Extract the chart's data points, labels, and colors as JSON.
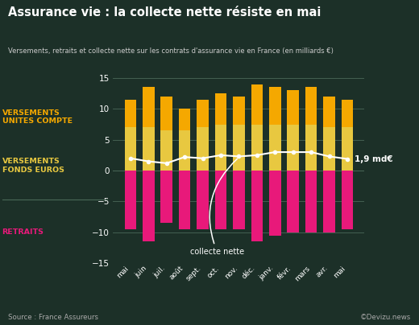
{
  "months": [
    "mai",
    "juin",
    "juil.",
    "août",
    "sept.",
    "oct.",
    "nov.",
    "déc.",
    "janv.",
    "févr.",
    "mars",
    "avr.",
    "mai"
  ],
  "versements_fonds_euros": [
    7.0,
    7.0,
    6.5,
    6.5,
    7.0,
    7.5,
    7.5,
    7.5,
    7.5,
    7.5,
    7.5,
    7.0,
    7.0
  ],
  "versements_uc": [
    4.5,
    6.5,
    5.5,
    3.5,
    4.5,
    5.0,
    4.5,
    6.5,
    6.0,
    5.5,
    6.0,
    5.0,
    4.5
  ],
  "retraits": [
    -9.5,
    -11.5,
    -8.5,
    -9.5,
    -9.5,
    -9.5,
    -9.5,
    -11.5,
    -10.5,
    -10.0,
    -10.0,
    -10.0,
    -9.5
  ],
  "collecte_nette": [
    2.0,
    1.5,
    1.2,
    2.2,
    2.0,
    2.5,
    2.3,
    2.5,
    3.0,
    3.0,
    3.0,
    2.3,
    1.9
  ],
  "color_uc": "#F5A800",
  "color_fonds_euros": "#E8C840",
  "color_retraits": "#E8197A",
  "color_line": "#FFFFFF",
  "bg_color": "#1C3028",
  "grid_color": "#4a6858",
  "title": "Assurance vie : la collecte nette résiste en mai",
  "subtitle": "Versements, retraits et collecte nette sur les contrats d'assurance vie en France (en milliards €)",
  "label_uc": "VERSEMENTS\nUNITES COMPTE",
  "label_fonds": "VERSEMENTS\nFONDS EUROS",
  "label_retraits": "RETRAITS",
  "label_collecte": "collecte nette",
  "label_value": "1,9 md€",
  "source": "Source : France Assureurs",
  "copyright": "©Devizu.news",
  "ylim": [
    -15,
    15
  ],
  "yticks": [
    -15,
    -10,
    -5,
    0,
    5,
    10,
    15
  ],
  "bar_width": 0.65
}
